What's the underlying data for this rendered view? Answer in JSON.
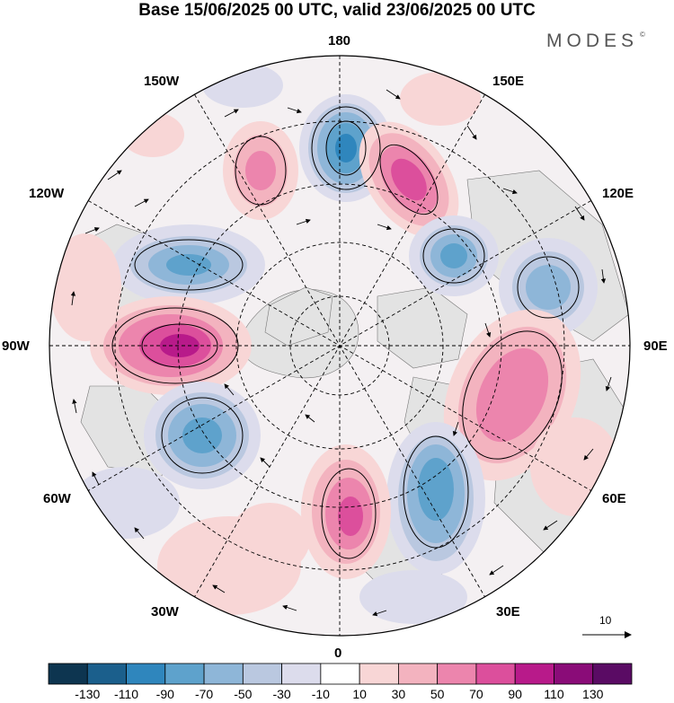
{
  "title": "Base 15/06/2025 00 UTC, valid 23/06/2025 00 UTC",
  "brand": "MODES",
  "brand_mark": "©",
  "longitude_labels": {
    "top": "180",
    "bottom": "0",
    "left": "90W",
    "right": "90E",
    "upper_left_1": "150W",
    "upper_left_2": "120W",
    "lower_left_1": "60W",
    "lower_left_2": "30W",
    "upper_right_1": "150E",
    "upper_right_2": "120E",
    "lower_right_1": "60E",
    "lower_right_2": "30E"
  },
  "reference_vector": {
    "label": "10"
  },
  "colorbar": {
    "labels": [
      "-130",
      "-110",
      "-90",
      "-70",
      "-50",
      "-30",
      "-10",
      "10",
      "30",
      "50",
      "70",
      "90",
      "110",
      "130"
    ],
    "colors": [
      "#0d3550",
      "#1b5f8c",
      "#2f86bd",
      "#5ea2cc",
      "#8eb6d8",
      "#bac8e0",
      "#dcdcec",
      "#ffffff",
      "#f8d6d6",
      "#f3b3bf",
      "#ec85ad",
      "#dc4f9c",
      "#b81a8a",
      "#8a0c78",
      "#5a0b64"
    ]
  },
  "anomaly_centers": [
    {
      "id": "c1",
      "sign": "neg",
      "level": 4
    },
    {
      "id": "c2",
      "sign": "pos",
      "level": 4
    },
    {
      "id": "c3",
      "sign": "pos",
      "level": 3
    },
    {
      "id": "c4",
      "sign": "neg",
      "level": 3
    },
    {
      "id": "c5",
      "sign": "neg",
      "level": 3
    },
    {
      "id": "c6",
      "sign": "pos",
      "level": 5
    },
    {
      "id": "c7",
      "sign": "neg",
      "level": 4
    },
    {
      "id": "c8",
      "sign": "neg",
      "level": 3
    },
    {
      "id": "c9",
      "sign": "pos",
      "level": 3
    },
    {
      "id": "c10",
      "sign": "neg",
      "level": 4
    },
    {
      "id": "c11",
      "sign": "pos",
      "level": 4
    },
    {
      "id": "c12",
      "sign": "neg",
      "level": 2
    },
    {
      "id": "c13",
      "sign": "pos",
      "level": 2
    }
  ]
}
